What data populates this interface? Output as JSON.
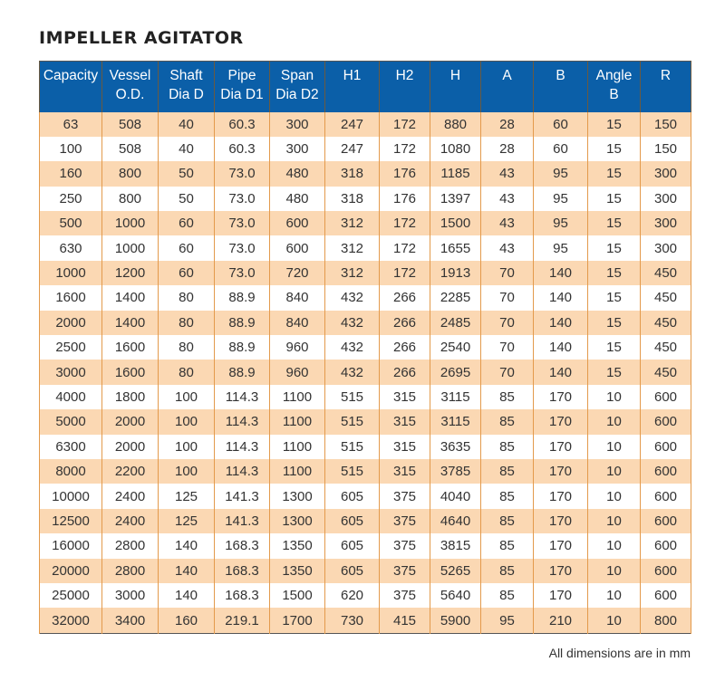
{
  "title": "IMPELLER AGITATOR",
  "note": "All dimensions are in mm",
  "colors": {
    "header_bg": "#0b5fa8",
    "stripe": "#fbd8b3",
    "rule": "#e39a4c"
  },
  "columns": [
    [
      "Capacity",
      ""
    ],
    [
      "Vessel",
      "O.D."
    ],
    [
      "Shaft",
      "Dia D"
    ],
    [
      "Pipe",
      "Dia D1"
    ],
    [
      "Span",
      "Dia D2"
    ],
    [
      "H1",
      ""
    ],
    [
      "H2",
      ""
    ],
    [
      "H",
      ""
    ],
    [
      "A",
      ""
    ],
    [
      "B",
      ""
    ],
    [
      "Angle",
      "B"
    ],
    [
      "R",
      ""
    ]
  ],
  "rows": [
    [
      "63",
      "508",
      "40",
      "60.3",
      "300",
      "247",
      "172",
      "880",
      "28",
      "60",
      "15",
      "150"
    ],
    [
      "100",
      "508",
      "40",
      "60.3",
      "300",
      "247",
      "172",
      "1080",
      "28",
      "60",
      "15",
      "150"
    ],
    [
      "160",
      "800",
      "50",
      "73.0",
      "480",
      "318",
      "176",
      "1185",
      "43",
      "95",
      "15",
      "300"
    ],
    [
      "250",
      "800",
      "50",
      "73.0",
      "480",
      "318",
      "176",
      "1397",
      "43",
      "95",
      "15",
      "300"
    ],
    [
      "500",
      "1000",
      "60",
      "73.0",
      "600",
      "312",
      "172",
      "1500",
      "43",
      "95",
      "15",
      "300"
    ],
    [
      "630",
      "1000",
      "60",
      "73.0",
      "600",
      "312",
      "172",
      "1655",
      "43",
      "95",
      "15",
      "300"
    ],
    [
      "1000",
      "1200",
      "60",
      "73.0",
      "720",
      "312",
      "172",
      "1913",
      "70",
      "140",
      "15",
      "450"
    ],
    [
      "1600",
      "1400",
      "80",
      "88.9",
      "840",
      "432",
      "266",
      "2285",
      "70",
      "140",
      "15",
      "450"
    ],
    [
      "2000",
      "1400",
      "80",
      "88.9",
      "840",
      "432",
      "266",
      "2485",
      "70",
      "140",
      "15",
      "450"
    ],
    [
      "2500",
      "1600",
      "80",
      "88.9",
      "960",
      "432",
      "266",
      "2540",
      "70",
      "140",
      "15",
      "450"
    ],
    [
      "3000",
      "1600",
      "80",
      "88.9",
      "960",
      "432",
      "266",
      "2695",
      "70",
      "140",
      "15",
      "450"
    ],
    [
      "4000",
      "1800",
      "100",
      "114.3",
      "1100",
      "515",
      "315",
      "3115",
      "85",
      "170",
      "10",
      "600"
    ],
    [
      "5000",
      "2000",
      "100",
      "114.3",
      "1100",
      "515",
      "315",
      "3115",
      "85",
      "170",
      "10",
      "600"
    ],
    [
      "6300",
      "2000",
      "100",
      "114.3",
      "1100",
      "515",
      "315",
      "3635",
      "85",
      "170",
      "10",
      "600"
    ],
    [
      "8000",
      "2200",
      "100",
      "114.3",
      "1100",
      "515",
      "315",
      "3785",
      "85",
      "170",
      "10",
      "600"
    ],
    [
      "10000",
      "2400",
      "125",
      "141.3",
      "1300",
      "605",
      "375",
      "4040",
      "85",
      "170",
      "10",
      "600"
    ],
    [
      "12500",
      "2400",
      "125",
      "141.3",
      "1300",
      "605",
      "375",
      "4640",
      "85",
      "170",
      "10",
      "600"
    ],
    [
      "16000",
      "2800",
      "140",
      "168.3",
      "1350",
      "605",
      "375",
      "3815",
      "85",
      "170",
      "10",
      "600"
    ],
    [
      "20000",
      "2800",
      "140",
      "168.3",
      "1350",
      "605",
      "375",
      "5265",
      "85",
      "170",
      "10",
      "600"
    ],
    [
      "25000",
      "3000",
      "140",
      "168.3",
      "1500",
      "620",
      "375",
      "5640",
      "85",
      "170",
      "10",
      "600"
    ],
    [
      "32000",
      "3400",
      "160",
      "219.1",
      "1700",
      "730",
      "415",
      "5900",
      "95",
      "210",
      "10",
      "800"
    ]
  ]
}
